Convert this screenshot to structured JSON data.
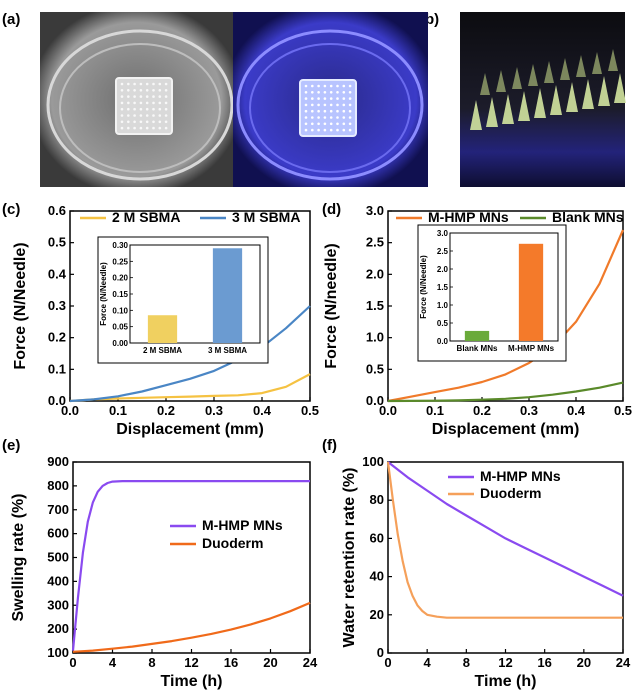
{
  "panel_labels": {
    "a": "(a)",
    "b": "(b)",
    "c": "(c)",
    "d": "(d)",
    "e": "(e)",
    "f": "(f)"
  },
  "photos": [
    {
      "panel": "a",
      "view": "daylight",
      "subject": "square microneedle patch in petri dish",
      "tone": "#8a8a8a"
    },
    {
      "panel": "a",
      "view": "uv",
      "subject": "square microneedle patch in petri dish under blue light",
      "tone": "#2f2fb0"
    },
    {
      "panel": "b",
      "view": "side",
      "subject": "microneedle array side view",
      "tone": "#1a1a2a"
    }
  ],
  "chart_data": [
    {
      "panel": "c",
      "type": "line",
      "xlabel": "Displacement (mm)",
      "ylabel": "Force (N/Needle)",
      "xlim": [
        0,
        0.5
      ],
      "ylim": [
        0,
        0.6
      ],
      "xticks": [
        "0.0",
        "0.1",
        "0.2",
        "0.3",
        "0.4",
        "0.5"
      ],
      "yticks": [
        "0.0",
        "0.1",
        "0.2",
        "0.3",
        "0.4",
        "0.5",
        "0.6"
      ],
      "legend_position": "top",
      "series": [
        {
          "name": "2 M SBMA",
          "color": "#f5c242",
          "x": [
            0,
            0.05,
            0.1,
            0.15,
            0.2,
            0.25,
            0.3,
            0.35,
            0.4,
            0.45,
            0.5
          ],
          "y": [
            0,
            0.005,
            0.008,
            0.01,
            0.012,
            0.014,
            0.016,
            0.018,
            0.025,
            0.045,
            0.085
          ]
        },
        {
          "name": "3 M SBMA",
          "color": "#4a86c5",
          "x": [
            0,
            0.05,
            0.1,
            0.15,
            0.2,
            0.25,
            0.3,
            0.35,
            0.4,
            0.45,
            0.5
          ],
          "y": [
            0,
            0.005,
            0.015,
            0.03,
            0.05,
            0.07,
            0.095,
            0.13,
            0.17,
            0.23,
            0.3
          ]
        }
      ],
      "inset": {
        "type": "bar",
        "ylabel": "Force (N/Needle)",
        "ylim": [
          0,
          0.3
        ],
        "yticks": [
          "0.00",
          "0.05",
          "0.10",
          "0.15",
          "0.20",
          "0.25",
          "0.30"
        ],
        "categories": [
          "2 M SBMA",
          "3 M SBMA"
        ],
        "values": [
          0.085,
          0.29
        ],
        "colors": [
          "#f0d060",
          "#6b9bd1"
        ]
      }
    },
    {
      "panel": "d",
      "type": "line",
      "xlabel": "Displacement (mm)",
      "ylabel": "Force (N/needle)",
      "xlim": [
        0,
        0.5
      ],
      "ylim": [
        0,
        3.0
      ],
      "xticks": [
        "0.0",
        "0.1",
        "0.2",
        "0.3",
        "0.4",
        "0.5"
      ],
      "yticks": [
        "0.0",
        "0.5",
        "1.0",
        "1.5",
        "2.0",
        "2.5",
        "3.0"
      ],
      "legend_position": "top",
      "series": [
        {
          "name": "M-HMP MNs",
          "color": "#f07a2a",
          "x": [
            0,
            0.05,
            0.1,
            0.15,
            0.2,
            0.25,
            0.3,
            0.35,
            0.4,
            0.45,
            0.5
          ],
          "y": [
            0,
            0.07,
            0.14,
            0.21,
            0.3,
            0.42,
            0.6,
            0.85,
            1.25,
            1.85,
            2.7
          ]
        },
        {
          "name": "Blank MNs",
          "color": "#5a8a2a",
          "x": [
            0,
            0.05,
            0.1,
            0.15,
            0.2,
            0.25,
            0.3,
            0.35,
            0.4,
            0.45,
            0.5
          ],
          "y": [
            0,
            0.002,
            0.005,
            0.01,
            0.02,
            0.035,
            0.06,
            0.1,
            0.15,
            0.21,
            0.29
          ]
        }
      ],
      "inset": {
        "type": "bar",
        "ylabel": "Force (N/Needle)",
        "ylim": [
          0,
          3.0
        ],
        "yticks": [
          "0.0",
          "0.5",
          "1.0",
          "1.5",
          "2.0",
          "2.5",
          "3.0"
        ],
        "categories": [
          "Blank MNs",
          "M-HMP MNs"
        ],
        "values": [
          0.28,
          2.7
        ],
        "colors": [
          "#6aaa3a",
          "#f47a2a"
        ]
      }
    },
    {
      "panel": "e",
      "type": "line",
      "xlabel": "Time (h)",
      "ylabel": "Swelling rate (%)",
      "xlim": [
        0,
        24
      ],
      "ylim": [
        100,
        900
      ],
      "xticks": [
        "0",
        "4",
        "8",
        "12",
        "16",
        "20",
        "24"
      ],
      "yticks": [
        "100",
        "200",
        "300",
        "400",
        "500",
        "600",
        "700",
        "800",
        "900"
      ],
      "legend_position": "center-right",
      "series": [
        {
          "name": "M-HMP MNs",
          "color": "#8a4af0",
          "x": [
            0,
            0.5,
            1,
            1.5,
            2,
            2.5,
            3,
            3.5,
            4,
            5,
            6,
            8,
            12,
            16,
            20,
            24
          ],
          "y": [
            110,
            330,
            520,
            650,
            730,
            775,
            800,
            812,
            818,
            820,
            820,
            820,
            820,
            820,
            820,
            820
          ]
        },
        {
          "name": "Duoderm",
          "color": "#f06a1a",
          "x": [
            0,
            2,
            4,
            6,
            8,
            10,
            12,
            14,
            16,
            18,
            20,
            22,
            24
          ],
          "y": [
            105,
            110,
            118,
            127,
            138,
            150,
            164,
            180,
            198,
            220,
            245,
            275,
            310
          ]
        }
      ]
    },
    {
      "panel": "f",
      "type": "line",
      "xlabel": "Time (h)",
      "ylabel": "Water retention rate (%)",
      "xlim": [
        0,
        24
      ],
      "ylim": [
        0,
        100
      ],
      "xticks": [
        "0",
        "4",
        "8",
        "12",
        "16",
        "20",
        "24"
      ],
      "yticks": [
        "0",
        "20",
        "40",
        "60",
        "80",
        "100"
      ],
      "legend_position": "top-right",
      "series": [
        {
          "name": "M-HMP MNs",
          "color": "#8a4af0",
          "x": [
            0,
            2,
            4,
            6,
            8,
            10,
            12,
            14,
            16,
            18,
            20,
            22,
            24
          ],
          "y": [
            100,
            92,
            85,
            78,
            72,
            66,
            60,
            55,
            50,
            45,
            40,
            35,
            30
          ]
        },
        {
          "name": "Duoderm",
          "color": "#f5a05a",
          "x": [
            0,
            0.5,
            1,
            1.5,
            2,
            2.5,
            3,
            3.5,
            4,
            5,
            6,
            8,
            12,
            16,
            20,
            24
          ],
          "y": [
            100,
            80,
            62,
            48,
            37,
            30,
            25,
            22,
            20,
            19,
            18.5,
            18.5,
            18.5,
            18.5,
            18.5,
            18.5
          ]
        }
      ]
    }
  ]
}
